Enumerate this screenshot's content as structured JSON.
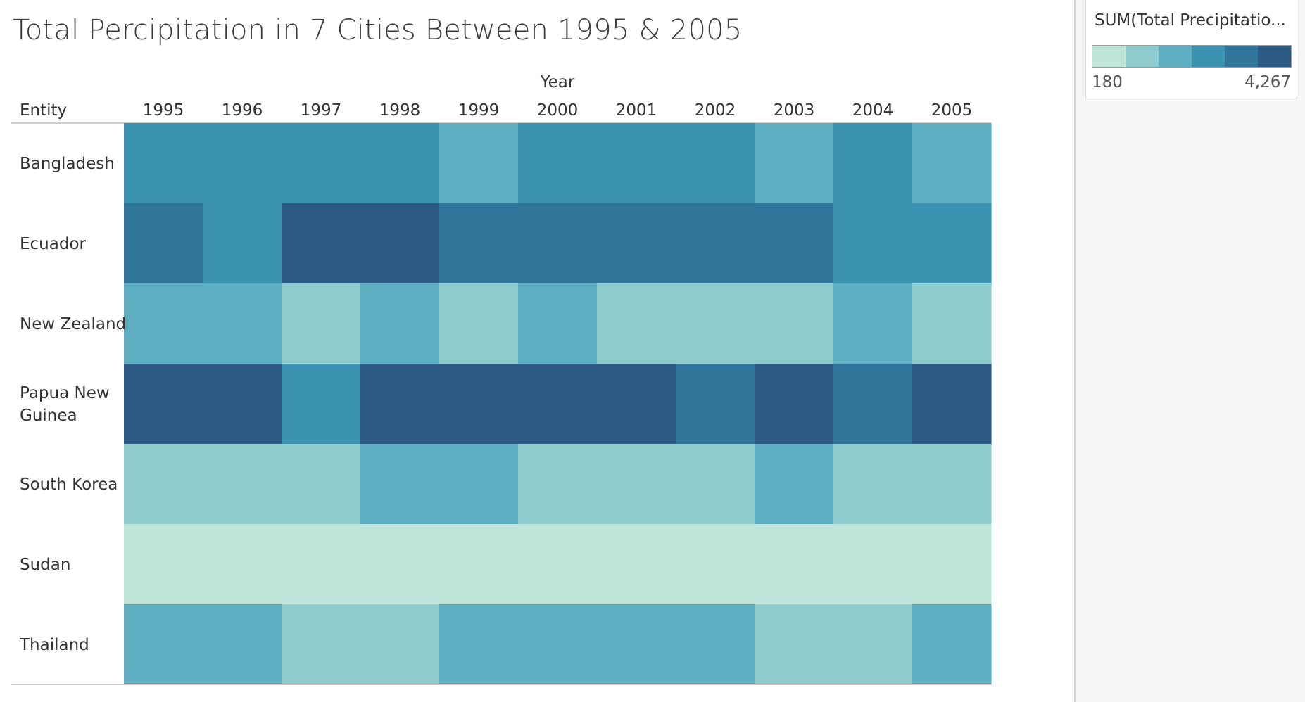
{
  "title": "Total Percipitation in 7 Cities Between 1995 & 2005",
  "chart_data": {
    "type": "heatmap",
    "title": "Total Percipitation in 7 Cities Between 1995 & 2005",
    "x_header": "Year",
    "y_header": "Entity",
    "x": [
      "1995",
      "1996",
      "1997",
      "1998",
      "1999",
      "2000",
      "2001",
      "2002",
      "2003",
      "2004",
      "2005"
    ],
    "y": [
      "Bangladesh",
      "Ecuador",
      "New Zealand",
      "Papua New Guinea",
      "South Korea",
      "Sudan",
      "Thailand"
    ],
    "color_bins": [
      "#bfe5da",
      "#8ecbcd",
      "#5eaec2",
      "#3b92b1",
      "#30759a",
      "#2d5985"
    ],
    "bin_index": [
      [
        3,
        3,
        3,
        3,
        2,
        3,
        3,
        3,
        2,
        3,
        2
      ],
      [
        4,
        3,
        5,
        5,
        4,
        4,
        4,
        4,
        4,
        3,
        3
      ],
      [
        2,
        2,
        1,
        2,
        1,
        2,
        1,
        1,
        1,
        2,
        1
      ],
      [
        5,
        5,
        3,
        5,
        5,
        5,
        5,
        4,
        5,
        4,
        5
      ],
      [
        1,
        1,
        1,
        2,
        2,
        1,
        1,
        1,
        2,
        1,
        1
      ],
      [
        0,
        0,
        0,
        0,
        0,
        0,
        0,
        0,
        0,
        0,
        0
      ],
      [
        2,
        2,
        1,
        1,
        2,
        2,
        2,
        2,
        1,
        1,
        2
      ]
    ],
    "legend": {
      "title": "SUM(Total Precipitatio...",
      "min_label": "180",
      "max_label": "4,267"
    }
  }
}
